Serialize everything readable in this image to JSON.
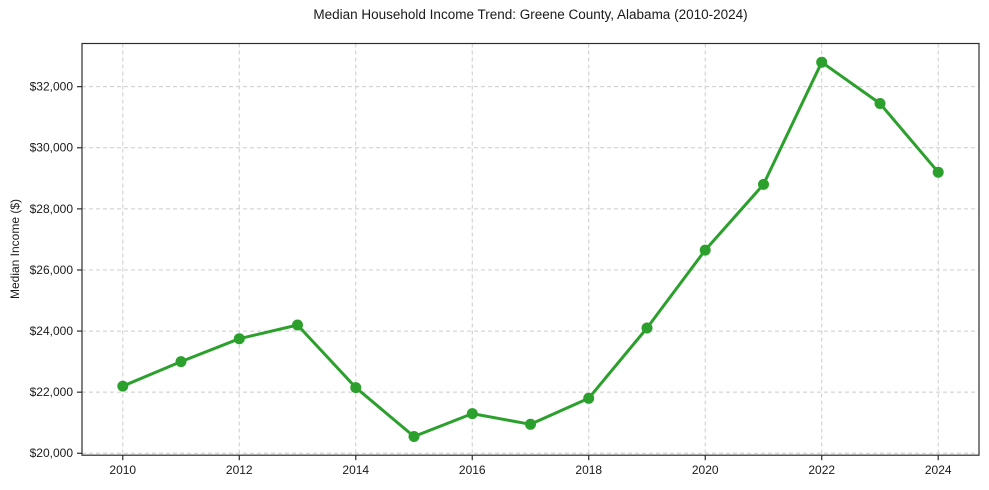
{
  "chart_data": {
    "type": "line",
    "title": "Median Household Income Trend: Greene County, Alabama (2010-2024)",
    "xlabel": "",
    "ylabel": "Median Income ($)",
    "x": [
      2010,
      2011,
      2012,
      2013,
      2014,
      2015,
      2016,
      2017,
      2018,
      2019,
      2020,
      2021,
      2022,
      2023,
      2024
    ],
    "values": [
      22200,
      23000,
      23750,
      24200,
      22150,
      20550,
      21300,
      20950,
      21800,
      24100,
      26650,
      28800,
      32800,
      31450,
      29200
    ],
    "xticks": [
      2010,
      2012,
      2014,
      2016,
      2018,
      2020,
      2022,
      2024
    ],
    "xtick_labels": [
      "2010",
      "2012",
      "2014",
      "2016",
      "2018",
      "2020",
      "2022",
      "2024"
    ],
    "yticks": [
      20000,
      22000,
      24000,
      26000,
      28000,
      30000,
      32000
    ],
    "ytick_labels": [
      "$20,000",
      "$22,000",
      "$24,000",
      "$26,000",
      "$28,000",
      "$30,000",
      "$32,000"
    ],
    "xlim": [
      2009.3,
      2024.7
    ],
    "ylim": [
      19937,
      33413
    ],
    "grid": true,
    "grid_style": "dashed",
    "grid_color": "#cccccc",
    "axis_color": "#2d2d2d",
    "line_color": "#2ca02c",
    "marker": "circle",
    "legend": "none",
    "background_color": "#ffffff"
  }
}
